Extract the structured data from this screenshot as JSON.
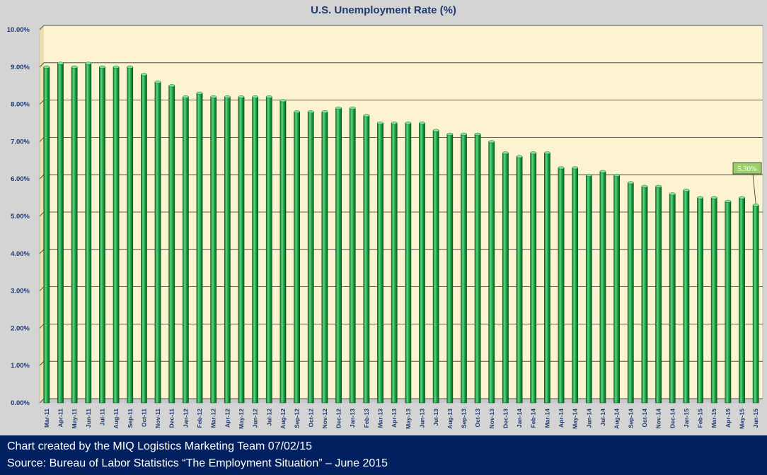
{
  "chart_data": {
    "type": "bar",
    "title": "U.S. Unemployment Rate (%)",
    "xlabel": "",
    "ylabel": "",
    "ylim": [
      0,
      10
    ],
    "y_ticks": [
      "0.00%",
      "1.00%",
      "2.00%",
      "3.00%",
      "4.00%",
      "5.00%",
      "6.00%",
      "7.00%",
      "8.00%",
      "9.00%",
      "10.00%"
    ],
    "grid": true,
    "categories": [
      "Mar-11",
      "Apr-11",
      "May-11",
      "Jun-11",
      "Jul-11",
      "Aug-11",
      "Sep-11",
      "Oct-11",
      "Nov-11",
      "Dec-11",
      "Jan-12",
      "Feb-12",
      "Mar-12",
      "Apr-12",
      "May-12",
      "Jun-12",
      "Jul-12",
      "Aug-12",
      "Sep-12",
      "Oct-12",
      "Nov-12",
      "Dec-12",
      "Jan-13",
      "Feb-13",
      "Mar-13",
      "Apr-13",
      "May-13",
      "Jun-13",
      "Jul-13",
      "Aug-13",
      "Sep-13",
      "Oct-13",
      "Nov-13",
      "Dec-13",
      "Jan-14",
      "Feb-14",
      "Mar-14",
      "Apr-14",
      "May-14",
      "Jun-14",
      "Jul-14",
      "Aug-14",
      "Sep-14",
      "Oct-14",
      "Nov-14",
      "Dec-14",
      "Jan-15",
      "Feb-15",
      "Mar-15",
      "Apr-15",
      "May-15",
      "Jun-15"
    ],
    "values": [
      9.0,
      9.1,
      9.0,
      9.1,
      9.0,
      9.0,
      9.0,
      8.8,
      8.6,
      8.5,
      8.2,
      8.3,
      8.2,
      8.2,
      8.2,
      8.2,
      8.2,
      8.1,
      7.8,
      7.8,
      7.8,
      7.9,
      7.9,
      7.7,
      7.5,
      7.5,
      7.5,
      7.5,
      7.3,
      7.2,
      7.2,
      7.2,
      7.0,
      6.7,
      6.6,
      6.7,
      6.7,
      6.3,
      6.3,
      6.1,
      6.2,
      6.1,
      5.9,
      5.8,
      5.8,
      5.6,
      5.7,
      5.5,
      5.5,
      5.4,
      5.5,
      5.3
    ],
    "annotation": {
      "category": "Jun-15",
      "text": "5.30%"
    },
    "colors": {
      "bar": "#1faa4a",
      "bar_dark": "#0d6e2b",
      "bar_light": "#5fd97e",
      "plot_bg": "#fdf3d0",
      "grid": "#333333",
      "frame": "#d4d4d4"
    }
  },
  "footer": {
    "line1": "Chart created by the MIQ Logistics Marketing Team 07/02/15",
    "line2": "Source: Bureau of Labor Statistics “The Employment Situation” – June 2015"
  }
}
